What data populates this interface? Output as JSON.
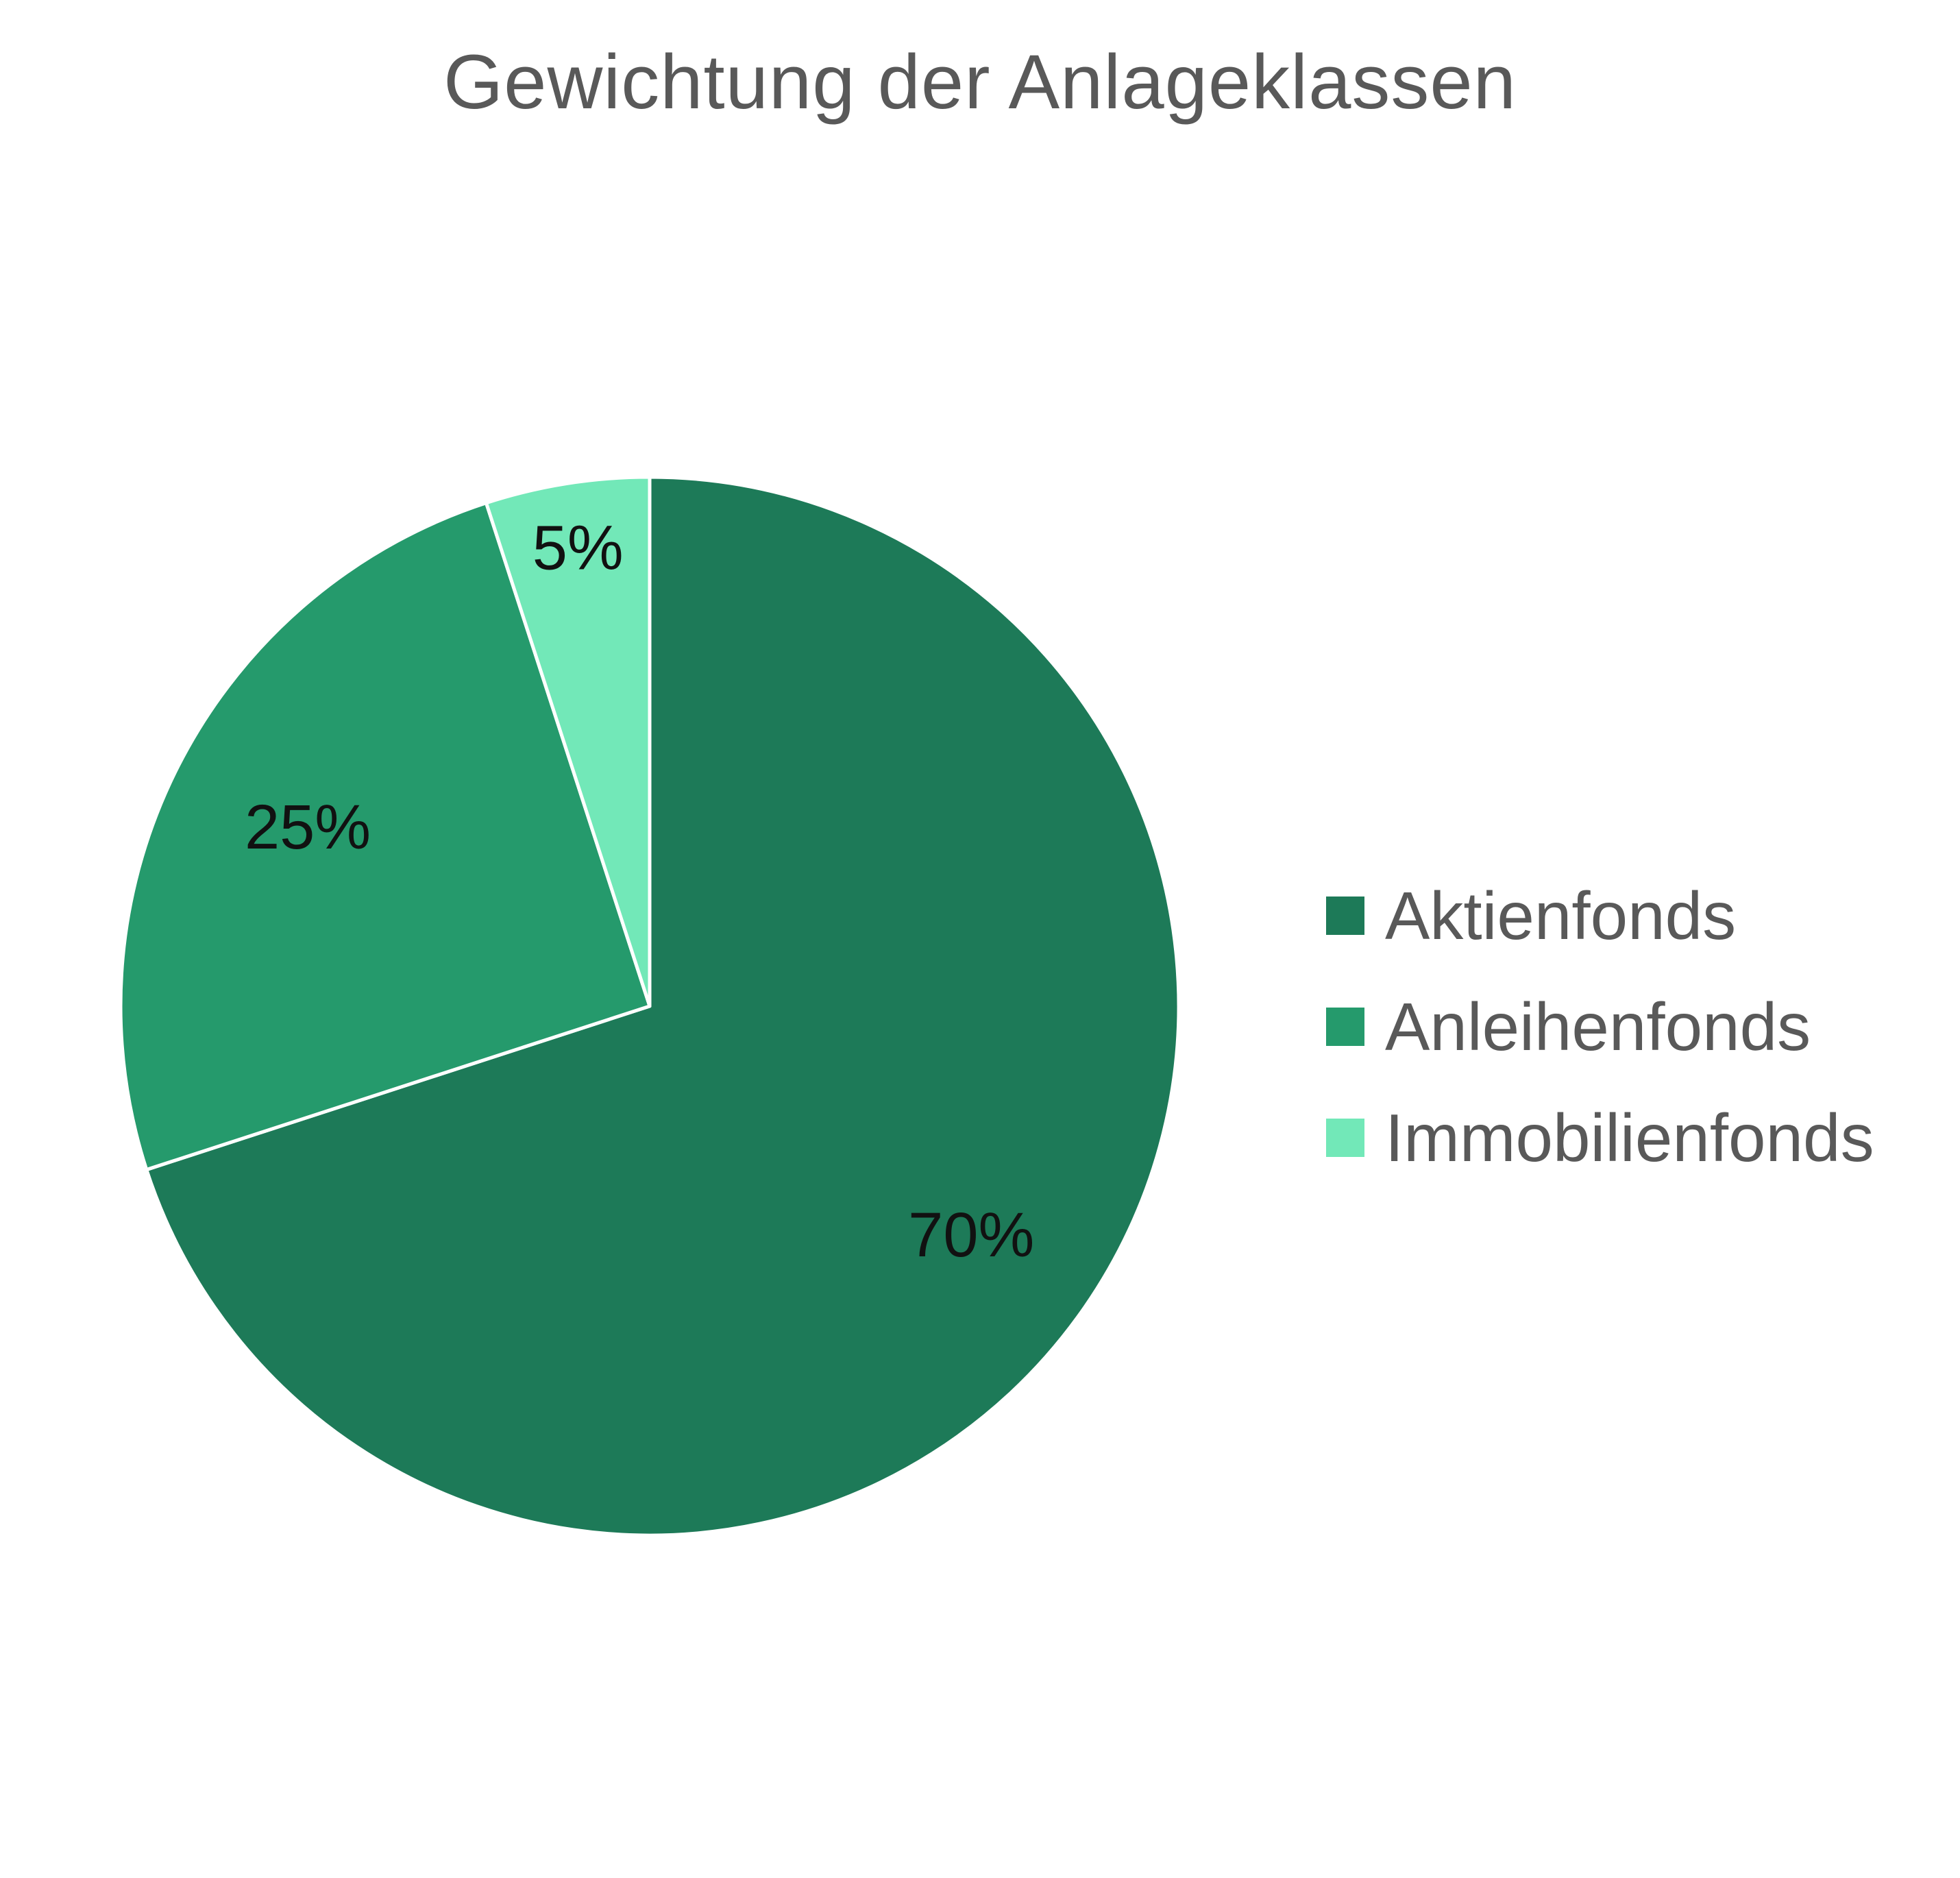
{
  "chart_data": {
    "type": "pie",
    "title": "Gewichtung der Anlageklassen",
    "legend_position": "right",
    "slices": [
      {
        "label": "Aktienfonds",
        "value": 70,
        "display": "70%",
        "color": "#1d7a58"
      },
      {
        "label": "Anleihenfonds",
        "value": 25,
        "display": "25%",
        "color": "#259a6c"
      },
      {
        "label": "Immobilienfonds",
        "value": 5,
        "display": "5%",
        "color": "#72e8b8"
      }
    ]
  }
}
